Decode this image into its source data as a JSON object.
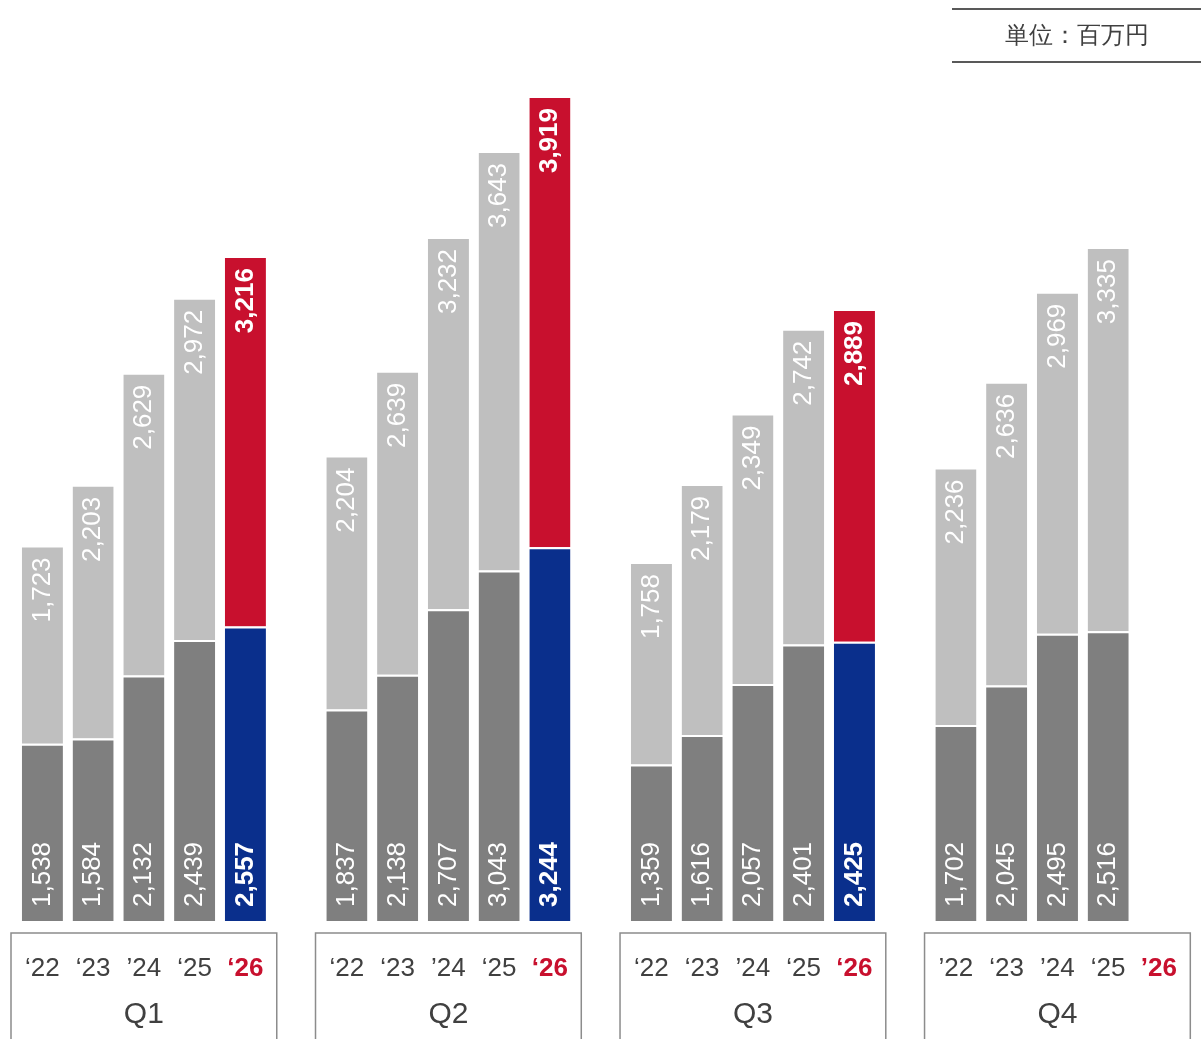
{
  "chart_data": {
    "type": "bar",
    "stacked": true,
    "annotations": [
      "単位：百万円",
      "Q1",
      "Q2",
      "Q3",
      "Q4"
    ],
    "categories": [
      "‘22",
      "‘23",
      "’24",
      "‘25",
      "‘26",
      null,
      "‘22",
      "‘23",
      "’24",
      "‘25",
      "‘26",
      null,
      "‘22",
      "‘23",
      "’24",
      "‘25",
      "‘26",
      null,
      "’22",
      "‘23",
      "’24",
      "‘25",
      "’26"
    ],
    "series": [
      {
        "color": "#7f7f7f",
        "colors": [
          "#7f7f7f",
          "#7f7f7f",
          "#7f7f7f",
          "#7f7f7f",
          "#0a2f8c",
          "#7f7f7f",
          "#7f7f7f",
          "#7f7f7f",
          "#7f7f7f",
          "#7f7f7f",
          "#0a2f8c",
          "#7f7f7f",
          "#7f7f7f",
          "#7f7f7f",
          "#7f7f7f",
          "#7f7f7f",
          "#0a2f8c",
          "#7f7f7f",
          "#7f7f7f",
          "#7f7f7f",
          "#7f7f7f",
          "#7f7f7f",
          "#0a2f8c"
        ],
        "values": [
          1538,
          1584,
          2132,
          2439,
          2557,
          null,
          1837,
          2138,
          2707,
          3043,
          3244,
          null,
          1359,
          1616,
          2057,
          2401,
          2425,
          null,
          1702,
          2045,
          2495,
          2516,
          null
        ],
        "value_labels": [
          "1,538",
          "1,584",
          "2,132",
          "2,439",
          "2,557",
          null,
          "1,837",
          "2,138",
          "2,707",
          "3,043",
          "3,244",
          null,
          "1,359",
          "1,616",
          "2,057",
          "2,401",
          "2,425",
          null,
          "1,702",
          "2,045",
          "2,495",
          "2,516",
          null
        ]
      },
      {
        "color": "#bfbfbf",
        "colors": [
          "#bfbfbf",
          "#bfbfbf",
          "#bfbfbf",
          "#bfbfbf",
          "#c8102e",
          "#bfbfbf",
          "#bfbfbf",
          "#bfbfbf",
          "#bfbfbf",
          "#bfbfbf",
          "#c8102e",
          "#bfbfbf",
          "#bfbfbf",
          "#bfbfbf",
          "#bfbfbf",
          "#bfbfbf",
          "#c8102e",
          "#bfbfbf",
          "#bfbfbf",
          "#bfbfbf",
          "#bfbfbf",
          "#bfbfbf",
          "#c8102e"
        ],
        "values": [
          1723,
          2203,
          2629,
          2972,
          3216,
          null,
          2204,
          2639,
          3232,
          3643,
          3919,
          null,
          1758,
          2179,
          2349,
          2742,
          2889,
          null,
          2236,
          2636,
          2969,
          3335,
          null
        ],
        "value_labels": [
          "1,723",
          "2,203",
          "2,629",
          "2,972",
          "3,216",
          null,
          "2,204",
          "2,639",
          "3,232",
          "3,643",
          "3,919",
          null,
          "1,758",
          "2,179",
          "2,349",
          "2,742",
          "2,889",
          null,
          "2,236",
          "2,636",
          "2,969",
          "3,335",
          null
        ]
      }
    ]
  }
}
